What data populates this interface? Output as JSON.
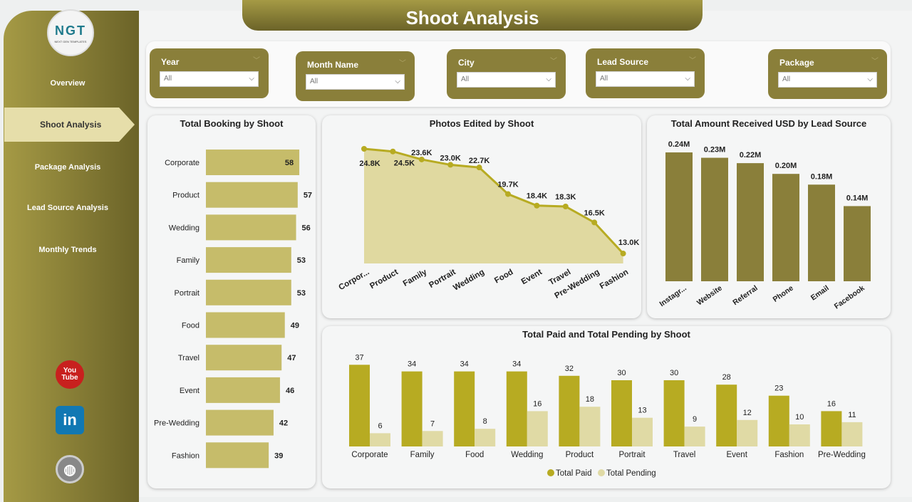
{
  "title": "Shoot Analysis",
  "logo": {
    "text": "NGT",
    "subtitle": "NEXT GEN TEMPLATES"
  },
  "nav": [
    "Overview",
    "Shoot Analysis",
    "Package Analysis",
    "Lead Source Analysis",
    "Monthly Trends"
  ],
  "social": {
    "youtube": "You Tube",
    "linkedin": "in"
  },
  "filters": [
    {
      "label": "Year",
      "value": "All"
    },
    {
      "label": "Month Name",
      "value": "All"
    },
    {
      "label": "City",
      "value": "All"
    },
    {
      "label": "Lead Source",
      "value": "All"
    },
    {
      "label": "Package",
      "value": "All"
    }
  ],
  "colors": {
    "primary": "#8a7f3a",
    "bar_light": "#c6bc6a",
    "paid": "#b7ab22",
    "pending": "#e0daa5",
    "area": "#e0d9a0"
  },
  "chart_data": [
    {
      "type": "bar",
      "orientation": "horizontal",
      "title": "Total Booking by Shoot",
      "categories": [
        "Corporate",
        "Product",
        "Wedding",
        "Family",
        "Portrait",
        "Food",
        "Travel",
        "Event",
        "Pre-Wedding",
        "Fashion"
      ],
      "values": [
        58,
        57,
        56,
        53,
        53,
        49,
        47,
        46,
        42,
        39
      ]
    },
    {
      "type": "area",
      "title": "Photos Edited by Shoot",
      "categories": [
        "Corpor...",
        "Product",
        "Family",
        "Portrait",
        "Wedding",
        "Food",
        "Event",
        "Travel",
        "Pre-Wedding",
        "Fashion"
      ],
      "values": [
        24.8,
        24.5,
        23.6,
        23.0,
        22.7,
        19.7,
        18.4,
        18.3,
        16.5,
        13.0
      ],
      "labels": [
        "24.8K",
        "24.5K",
        "23.6K",
        "23.0K",
        "22.7K",
        "19.7K",
        "18.4K",
        "18.3K",
        "16.5K",
        "13.0K"
      ]
    },
    {
      "type": "bar",
      "title": "Total Amount Received USD by Lead Source",
      "categories": [
        "Instagr...",
        "Website",
        "Referral",
        "Phone",
        "Email",
        "Facebook"
      ],
      "values": [
        0.24,
        0.23,
        0.22,
        0.2,
        0.18,
        0.14
      ],
      "labels": [
        "0.24M",
        "0.23M",
        "0.22M",
        "0.20M",
        "0.18M",
        "0.14M"
      ]
    },
    {
      "type": "bar",
      "title": "Total Paid and Total Pending by Shoot",
      "categories": [
        "Corporate",
        "Family",
        "Food",
        "Wedding",
        "Product",
        "Portrait",
        "Travel",
        "Event",
        "Fashion",
        "Pre-Wedding"
      ],
      "series": [
        {
          "name": "Total Paid",
          "values": [
            37,
            34,
            34,
            34,
            32,
            30,
            30,
            28,
            23,
            16
          ]
        },
        {
          "name": "Total Pending",
          "values": [
            6,
            7,
            8,
            16,
            18,
            13,
            9,
            12,
            10,
            11
          ]
        }
      ],
      "legend": "bottom"
    }
  ]
}
